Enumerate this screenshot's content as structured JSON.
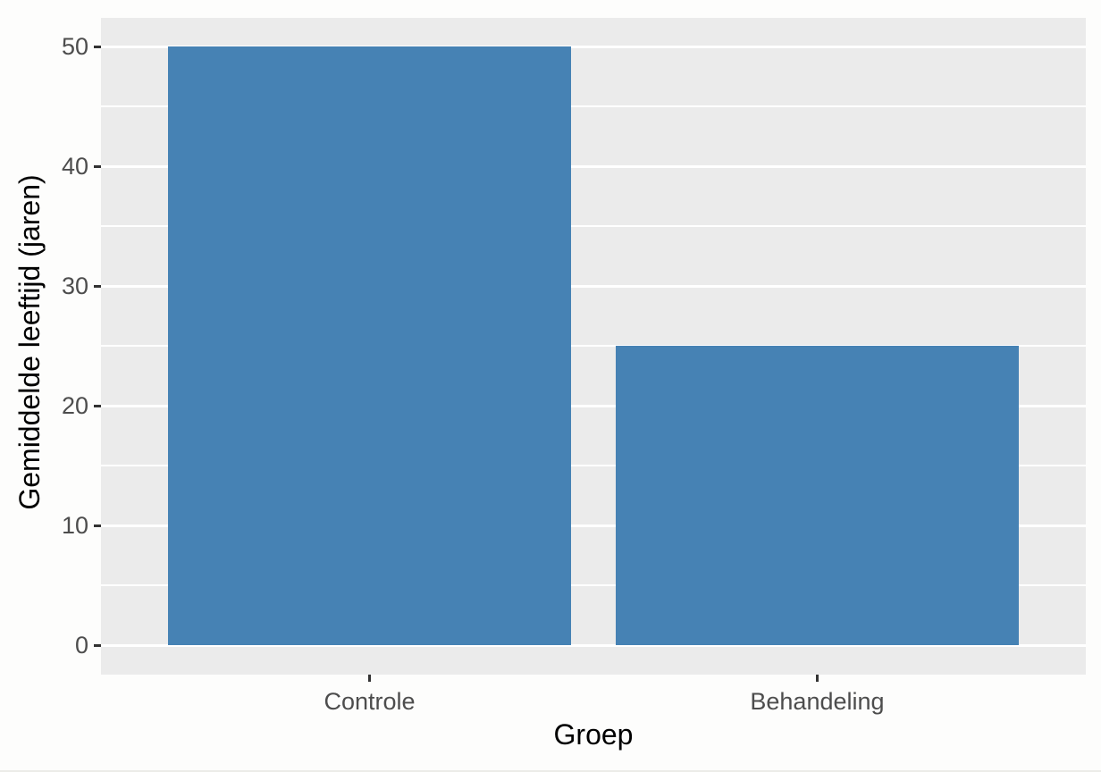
{
  "chart_data": {
    "type": "bar",
    "categories": [
      "Controle",
      "Behandeling"
    ],
    "values": [
      50,
      25
    ],
    "title": "",
    "xlabel": "Groep",
    "ylabel": "Gemiddelde leeftijd (jaren)",
    "ylim": [
      0,
      50
    ],
    "yticks": [
      0,
      10,
      20,
      30,
      40,
      50
    ],
    "ytick_labels": [
      "0",
      "10",
      "20",
      "30",
      "40",
      "50"
    ],
    "yticks_minor": [
      5,
      15,
      25,
      35,
      45
    ],
    "grid": "major-and-minor-horizontal",
    "legend": "none",
    "style": "ggplot2-grey-theme",
    "colors": {
      "bar_fill": "#4682B4",
      "panel_background": "#EBEBEB",
      "gridline": "#FFFFFF",
      "tick_mark": "#333333",
      "tick_label": "#4D4D4D",
      "axis_title": "#000000",
      "figure_background": "#FDFDFC"
    }
  }
}
